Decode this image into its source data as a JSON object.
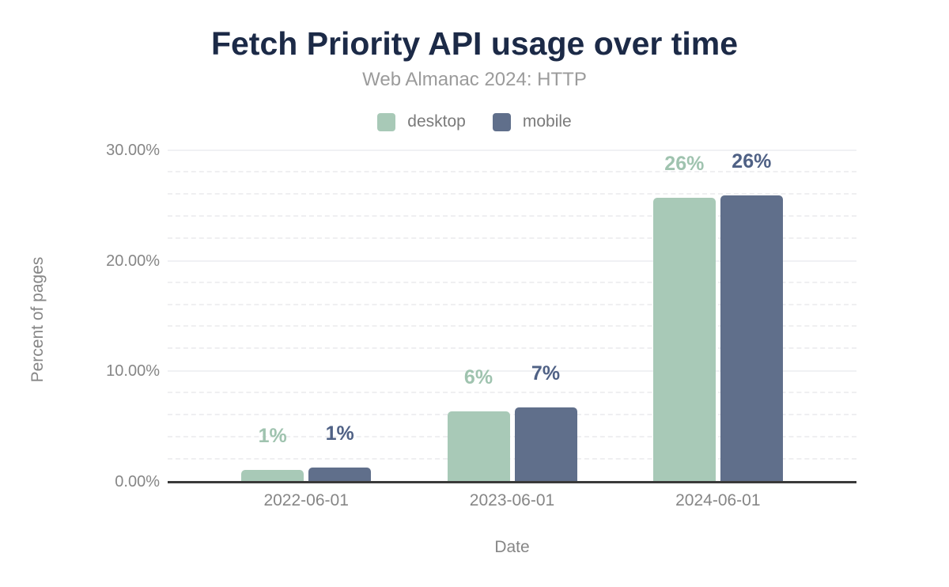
{
  "chart_data": {
    "type": "bar",
    "title": "Fetch Priority API usage over time",
    "subtitle": "Web Almanac 2024: HTTP",
    "xlabel": "Date",
    "ylabel": "Percent of pages",
    "categories": [
      "2022-06-01",
      "2023-06-01",
      "2024-06-01"
    ],
    "series": [
      {
        "name": "desktop",
        "color": "#a8c9b7",
        "label_color": "#9fc3af",
        "values": [
          1.1,
          6.4,
          25.7
        ],
        "labels": [
          "1%",
          "6%",
          "26%"
        ]
      },
      {
        "name": "mobile",
        "color": "#606f8b",
        "label_color": "#4f6185",
        "values": [
          1.3,
          6.7,
          25.9
        ],
        "labels": [
          "1%",
          "7%",
          "26%"
        ]
      }
    ],
    "ylim": [
      0,
      30
    ],
    "yticks": [
      {
        "value": 0,
        "label": "0.00%"
      },
      {
        "value": 10,
        "label": "10.00%"
      },
      {
        "value": 20,
        "label": "20.00%"
      },
      {
        "value": 30,
        "label": "30.00%"
      }
    ],
    "grid": {
      "minor_step": 2,
      "major_step": 10,
      "minor_style": "dashed",
      "major_style": "solid"
    },
    "legend_position": "top"
  },
  "colors": {
    "title": "#1c2a47",
    "subtitle": "#9b9b9b",
    "legend_text": "#7a7a7a",
    "axis_text": "#868686",
    "baseline": "#3a3a3a",
    "grid_major": "#f0f1f4",
    "grid_minor": "#efeff1",
    "background": "#ffffff"
  }
}
